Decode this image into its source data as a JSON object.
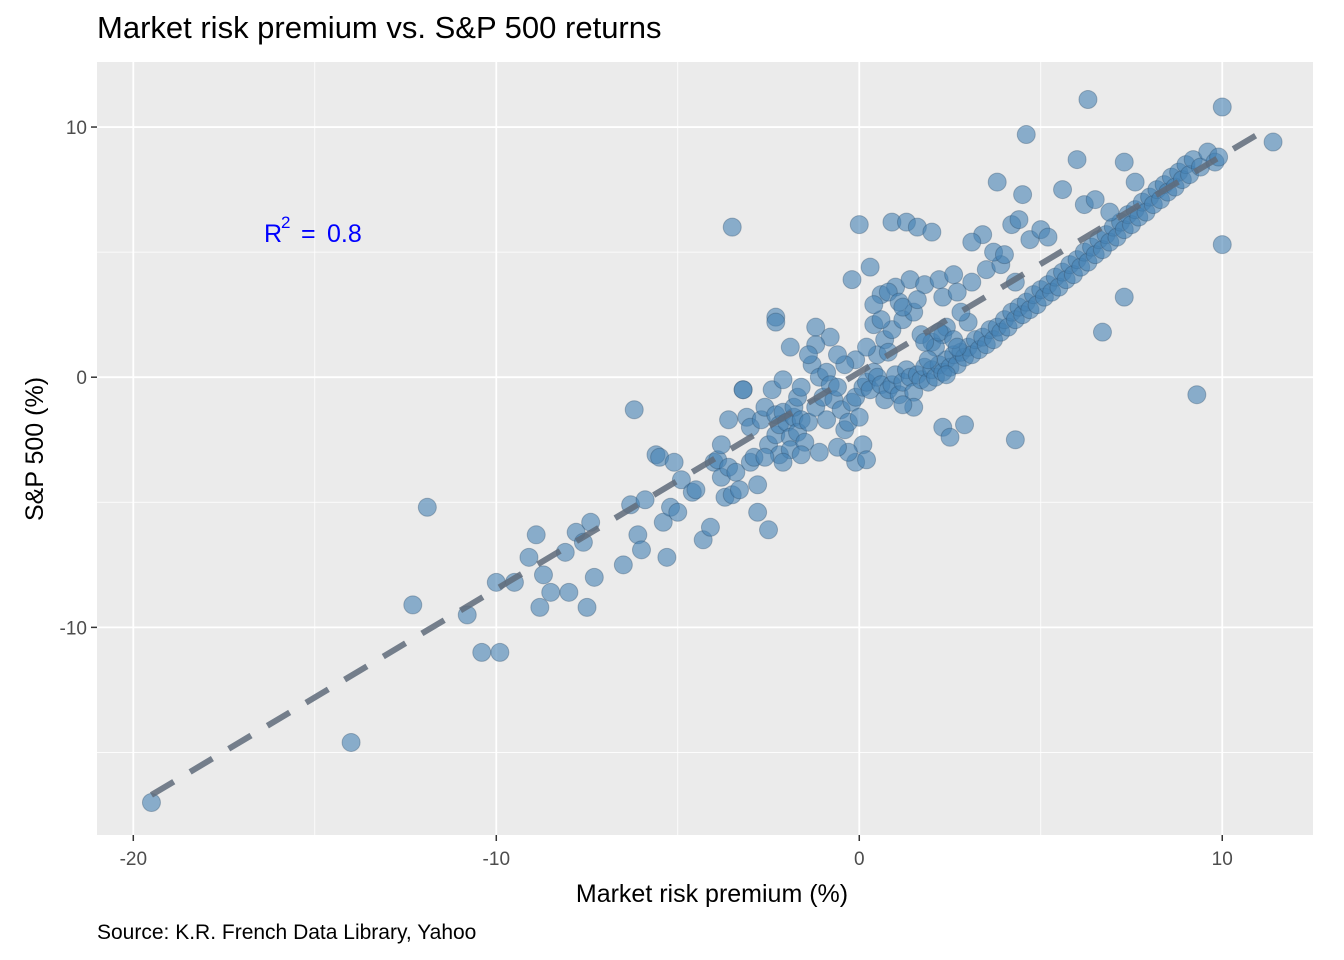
{
  "caption": "Source: K.R. French Data Library, Yahoo",
  "annotation": {
    "label": "R",
    "superscript": "2",
    "equals": "=",
    "value": "0.8",
    "color": "#0000FF"
  },
  "chart_data": {
    "type": "scatter",
    "title": "Market risk premium vs. S&P 500 returns",
    "xlabel": "Market risk premium (%)",
    "ylabel": "S&P 500 (%)",
    "xlim": [
      -21,
      12.5
    ],
    "ylim": [
      -18.3,
      12.6
    ],
    "x_ticks": [
      -20,
      -10,
      0,
      10
    ],
    "y_ticks": [
      -10,
      0,
      10
    ],
    "grid": true,
    "legend": "none",
    "panel_background": "#EBEBEB",
    "point_color": "#4682B4",
    "trendline": {
      "style": "dashed",
      "color": "#5F6B7A",
      "x": [
        -19.5,
        11.2
      ],
      "y": [
        -16.7,
        9.9
      ]
    },
    "points": [
      [
        -19.5,
        -17.0
      ],
      [
        -14.0,
        -14.6
      ],
      [
        -12.3,
        -9.1
      ],
      [
        -11.9,
        -5.2
      ],
      [
        -10.8,
        -9.5
      ],
      [
        -10.4,
        -11.0
      ],
      [
        -10.0,
        -8.2
      ],
      [
        -9.9,
        -11.0
      ],
      [
        -9.5,
        -8.2
      ],
      [
        -9.1,
        -7.2
      ],
      [
        -8.9,
        -6.3
      ],
      [
        -8.8,
        -9.2
      ],
      [
        -8.7,
        -7.9
      ],
      [
        -8.5,
        -8.6
      ],
      [
        -8.1,
        -7.0
      ],
      [
        -8.0,
        -8.6
      ],
      [
        -7.8,
        -6.2
      ],
      [
        -7.6,
        -6.6
      ],
      [
        -7.5,
        -9.2
      ],
      [
        -7.4,
        -5.8
      ],
      [
        -7.3,
        -8.0
      ],
      [
        -6.5,
        -7.5
      ],
      [
        -6.3,
        -5.1
      ],
      [
        -6.2,
        -1.3
      ],
      [
        -6.1,
        -6.3
      ],
      [
        -6.0,
        -6.9
      ],
      [
        -5.9,
        -4.9
      ],
      [
        -5.6,
        -3.1
      ],
      [
        -5.5,
        -3.2
      ],
      [
        -5.4,
        -5.8
      ],
      [
        -5.3,
        -7.2
      ],
      [
        -5.2,
        -5.2
      ],
      [
        -5.1,
        -3.4
      ],
      [
        -5.0,
        -5.4
      ],
      [
        -4.9,
        -4.1
      ],
      [
        -4.6,
        -4.6
      ],
      [
        -4.5,
        -4.5
      ],
      [
        -4.3,
        -6.5
      ],
      [
        -4.1,
        -6.0
      ],
      [
        -4.0,
        -3.4
      ],
      [
        -3.9,
        -3.3
      ],
      [
        -3.8,
        -4.0
      ],
      [
        -3.8,
        -2.7
      ],
      [
        -3.7,
        -4.8
      ],
      [
        -3.6,
        -3.6
      ],
      [
        -3.6,
        -1.7
      ],
      [
        -3.5,
        6.0
      ],
      [
        -3.5,
        -4.7
      ],
      [
        -3.4,
        -3.8
      ],
      [
        -3.3,
        -4.5
      ],
      [
        -3.2,
        -0.5
      ],
      [
        -3.2,
        -0.5
      ],
      [
        -3.1,
        -1.6
      ],
      [
        -3.0,
        -2.0
      ],
      [
        -3.0,
        -3.4
      ],
      [
        -2.9,
        -3.2
      ],
      [
        -2.8,
        -5.4
      ],
      [
        -2.7,
        -1.7
      ],
      [
        -2.6,
        -1.2
      ],
      [
        -2.5,
        -2.7
      ],
      [
        -2.4,
        -0.5
      ],
      [
        -2.3,
        -1.5
      ],
      [
        -2.3,
        -2.3
      ],
      [
        -2.2,
        -1.9
      ],
      [
        -2.2,
        -3.1
      ],
      [
        -2.1,
        -0.1
      ],
      [
        -2.1,
        -1.4
      ],
      [
        -2.0,
        -1.8
      ],
      [
        -1.9,
        -2.4
      ],
      [
        -1.9,
        -2.9
      ],
      [
        -1.8,
        -1.6
      ],
      [
        -1.8,
        -1.2
      ],
      [
        -1.7,
        -0.8
      ],
      [
        -1.7,
        -2.2
      ],
      [
        -1.6,
        -1.7
      ],
      [
        -1.6,
        -0.4
      ],
      [
        -1.5,
        -2.6
      ],
      [
        -1.4,
        -1.8
      ],
      [
        -1.3,
        0.5
      ],
      [
        -1.2,
        -1.2
      ],
      [
        -1.1,
        0.0
      ],
      [
        -1.0,
        -0.8
      ],
      [
        -0.9,
        -1.7
      ],
      [
        -0.9,
        0.2
      ],
      [
        -0.8,
        -0.3
      ],
      [
        -0.7,
        -0.9
      ],
      [
        -0.6,
        -0.4
      ],
      [
        -0.5,
        -1.3
      ],
      [
        -0.4,
        -2.1
      ],
      [
        -0.3,
        -1.8
      ],
      [
        -0.2,
        -1.0
      ],
      [
        -0.1,
        -0.8
      ],
      [
        0.0,
        -1.6
      ],
      [
        0.1,
        -0.4
      ],
      [
        0.2,
        -0.2
      ],
      [
        0.3,
        -0.5
      ],
      [
        0.4,
        0.2
      ],
      [
        0.5,
        0.0
      ],
      [
        0.6,
        -0.3
      ],
      [
        0.7,
        -0.9
      ],
      [
        0.8,
        -0.5
      ],
      [
        0.9,
        -0.3
      ],
      [
        1.0,
        0.1
      ],
      [
        1.1,
        -0.7
      ],
      [
        1.2,
        -0.2
      ],
      [
        1.3,
        0.3
      ],
      [
        1.4,
        0.0
      ],
      [
        1.5,
        -0.6
      ],
      [
        1.6,
        0.1
      ],
      [
        1.7,
        -0.1
      ],
      [
        1.8,
        0.4
      ],
      [
        1.9,
        -0.2
      ],
      [
        2.0,
        0.3
      ],
      [
        2.1,
        0.0
      ],
      [
        2.2,
        0.5
      ],
      [
        2.3,
        0.2
      ],
      [
        2.4,
        0.7
      ],
      [
        2.5,
        0.4
      ],
      [
        2.6,
        0.9
      ],
      [
        2.7,
        0.5
      ],
      [
        2.8,
        1.0
      ],
      [
        2.9,
        0.8
      ],
      [
        3.0,
        1.2
      ],
      [
        3.1,
        0.9
      ],
      [
        3.2,
        1.5
      ],
      [
        3.3,
        1.1
      ],
      [
        3.4,
        1.6
      ],
      [
        3.5,
        1.3
      ],
      [
        3.6,
        1.9
      ],
      [
        3.7,
        1.5
      ],
      [
        3.8,
        2.0
      ],
      [
        3.9,
        1.8
      ],
      [
        4.0,
        2.3
      ],
      [
        4.1,
        2.0
      ],
      [
        4.2,
        2.6
      ],
      [
        4.3,
        2.3
      ],
      [
        4.4,
        2.8
      ],
      [
        4.5,
        2.5
      ],
      [
        4.6,
        3.0
      ],
      [
        4.7,
        2.7
      ],
      [
        4.8,
        3.3
      ],
      [
        4.9,
        2.9
      ],
      [
        5.0,
        3.5
      ],
      [
        5.1,
        3.2
      ],
      [
        5.2,
        3.7
      ],
      [
        5.3,
        3.4
      ],
      [
        5.4,
        4.0
      ],
      [
        5.5,
        3.6
      ],
      [
        5.6,
        4.2
      ],
      [
        5.7,
        3.9
      ],
      [
        5.8,
        4.5
      ],
      [
        5.9,
        4.1
      ],
      [
        6.0,
        4.7
      ],
      [
        6.1,
        4.4
      ],
      [
        6.2,
        5.0
      ],
      [
        6.3,
        4.6
      ],
      [
        6.4,
        5.2
      ],
      [
        6.5,
        4.9
      ],
      [
        6.6,
        5.5
      ],
      [
        6.7,
        5.1
      ],
      [
        6.8,
        5.7
      ],
      [
        6.9,
        5.4
      ],
      [
        7.0,
        6.0
      ],
      [
        7.1,
        5.6
      ],
      [
        7.2,
        6.2
      ],
      [
        7.3,
        5.9
      ],
      [
        7.4,
        6.5
      ],
      [
        7.5,
        6.1
      ],
      [
        7.6,
        6.7
      ],
      [
        7.7,
        6.4
      ],
      [
        7.8,
        7.0
      ],
      [
        7.9,
        6.6
      ],
      [
        8.0,
        7.2
      ],
      [
        8.1,
        6.9
      ],
      [
        8.2,
        7.5
      ],
      [
        8.3,
        7.1
      ],
      [
        8.4,
        7.7
      ],
      [
        8.5,
        7.4
      ],
      [
        8.6,
        8.0
      ],
      [
        8.7,
        7.6
      ],
      [
        8.8,
        8.2
      ],
      [
        8.9,
        7.9
      ],
      [
        9.0,
        8.5
      ],
      [
        9.1,
        8.1
      ],
      [
        9.2,
        8.7
      ],
      [
        9.3,
        -0.7
      ],
      [
        9.4,
        8.4
      ],
      [
        9.6,
        9.0
      ],
      [
        9.8,
        8.6
      ],
      [
        9.9,
        8.8
      ],
      [
        10.0,
        10.8
      ],
      [
        10.0,
        5.3
      ],
      [
        11.4,
        9.4
      ],
      [
        6.3,
        11.1
      ],
      [
        4.6,
        9.7
      ],
      [
        7.3,
        3.2
      ],
      [
        6.7,
        1.8
      ],
      [
        4.3,
        -2.5
      ],
      [
        2.3,
        -2.0
      ],
      [
        2.5,
        -2.4
      ],
      [
        2.9,
        -1.9
      ],
      [
        1.5,
        -1.2
      ],
      [
        1.2,
        -1.1
      ],
      [
        0.9,
        6.2
      ],
      [
        1.3,
        6.2
      ],
      [
        1.6,
        6.0
      ],
      [
        2.0,
        5.8
      ],
      [
        0.0,
        6.1
      ],
      [
        -2.5,
        -6.1
      ],
      [
        -2.8,
        -4.3
      ],
      [
        -0.1,
        -3.4
      ],
      [
        0.1,
        -2.7
      ],
      [
        0.2,
        -3.3
      ],
      [
        -0.3,
        -3.0
      ],
      [
        -0.6,
        -2.8
      ],
      [
        -1.1,
        -3.0
      ],
      [
        -1.6,
        -3.1
      ],
      [
        -2.1,
        -3.4
      ],
      [
        -2.6,
        -3.2
      ],
      [
        -0.2,
        3.9
      ],
      [
        0.3,
        4.4
      ],
      [
        0.6,
        3.3
      ],
      [
        1.0,
        3.6
      ],
      [
        1.4,
        3.9
      ],
      [
        1.8,
        3.7
      ],
      [
        2.2,
        3.9
      ],
      [
        2.6,
        4.1
      ],
      [
        3.1,
        3.8
      ],
      [
        3.5,
        4.3
      ],
      [
        3.9,
        4.5
      ],
      [
        4.3,
        3.8
      ],
      [
        4.7,
        5.5
      ],
      [
        5.0,
        5.9
      ],
      [
        5.2,
        5.6
      ],
      [
        5.6,
        7.5
      ],
      [
        6.0,
        8.7
      ],
      [
        6.2,
        6.9
      ],
      [
        6.5,
        7.1
      ],
      [
        6.9,
        6.6
      ],
      [
        7.3,
        8.6
      ],
      [
        7.6,
        7.8
      ],
      [
        3.8,
        7.8
      ],
      [
        4.5,
        7.3
      ],
      [
        3.4,
        5.7
      ],
      [
        3.1,
        5.4
      ],
      [
        3.7,
        5.0
      ],
      [
        4.0,
        4.9
      ],
      [
        4.2,
        6.1
      ],
      [
        4.4,
        6.3
      ],
      [
        0.5,
        0.9
      ],
      [
        0.7,
        1.5
      ],
      [
        0.9,
        1.9
      ],
      [
        1.2,
        2.3
      ],
      [
        1.5,
        2.6
      ],
      [
        1.7,
        1.7
      ],
      [
        2.0,
        1.4
      ],
      [
        2.3,
        1.7
      ],
      [
        2.4,
        2.0
      ],
      [
        2.1,
        1.2
      ],
      [
        1.9,
        0.7
      ],
      [
        2.2,
        1.8
      ],
      [
        1.8,
        1.4
      ],
      [
        2.6,
        1.5
      ],
      [
        2.7,
        1.2
      ],
      [
        3.0,
        2.2
      ],
      [
        2.4,
        0.1
      ],
      [
        2.8,
        2.6
      ],
      [
        -0.1,
        0.7
      ],
      [
        0.2,
        1.2
      ],
      [
        0.4,
        2.1
      ],
      [
        0.6,
        2.3
      ],
      [
        0.8,
        1.0
      ],
      [
        -0.4,
        0.5
      ],
      [
        -0.6,
        0.9
      ],
      [
        -0.8,
        1.6
      ],
      [
        -1.2,
        1.3
      ],
      [
        -1.4,
        0.9
      ],
      [
        -1.9,
        1.2
      ],
      [
        -2.3,
        2.4
      ],
      [
        -2.3,
        2.2
      ],
      [
        -1.2,
        2.0
      ],
      [
        0.4,
        2.9
      ],
      [
        0.8,
        3.4
      ],
      [
        1.1,
        3.0
      ],
      [
        1.2,
        2.8
      ],
      [
        1.6,
        3.1
      ],
      [
        2.3,
        3.2
      ],
      [
        2.7,
        3.4
      ]
    ]
  }
}
